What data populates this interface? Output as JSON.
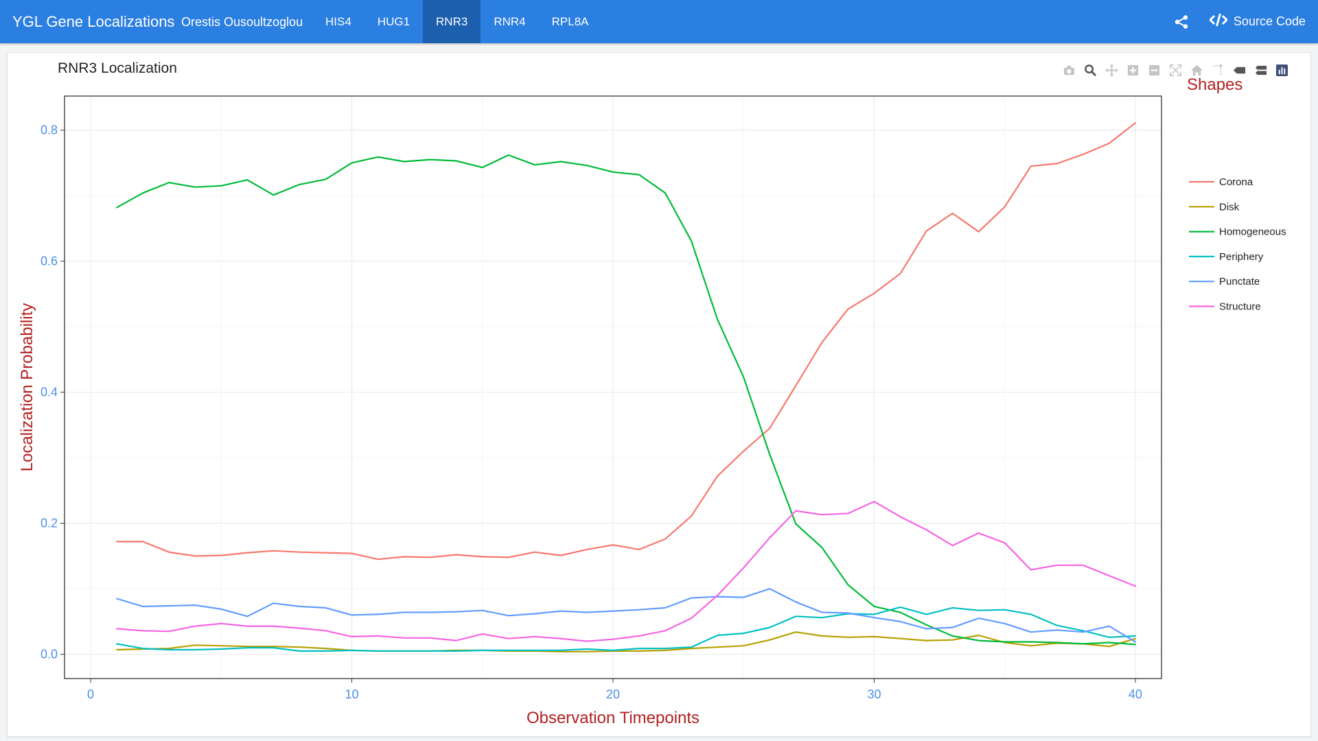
{
  "navbar": {
    "brand": "YGL Gene Localizations",
    "author": "Orestis Ousoultzoglou",
    "tabs": [
      {
        "label": "HIS4",
        "active": false
      },
      {
        "label": "HUG1",
        "active": false
      },
      {
        "label": "RNR3",
        "active": true
      },
      {
        "label": "RNR4",
        "active": false
      },
      {
        "label": "RPL8A",
        "active": false
      }
    ],
    "share_icon": "share-icon",
    "source_icon": "code-icon",
    "source_label": "Source Code"
  },
  "modebar": [
    "camera-icon",
    "zoom-icon",
    "pan-icon",
    "zoom-in-icon",
    "zoom-out-icon",
    "autoscale-icon",
    "home-icon",
    "spike-lines-icon",
    "hover-closest-icon",
    "hover-compare-icon",
    "plotly-logo-icon"
  ],
  "chart_data": {
    "type": "line",
    "title": "RNR3 Localization",
    "xlabel": "Observation Timepoints",
    "ylabel": "Localization Probability",
    "legend_title": "Shapes",
    "legend_position": "right",
    "xlim": [
      -1,
      41
    ],
    "ylim": [
      -0.037,
      0.852
    ],
    "xticks": [
      0,
      10,
      20,
      30,
      40
    ],
    "yticks": [
      0.0,
      0.2,
      0.4,
      0.6,
      0.8
    ],
    "ytick_labels": [
      "0.0",
      "0.2",
      "0.4",
      "0.6",
      "0.8"
    ],
    "grid": true,
    "colors": {
      "title": "#222222",
      "axis_labels": "#b22222",
      "tick_labels": "#4a8fe7",
      "grid": "#ebebeb",
      "frame": "#333333"
    },
    "x": [
      1,
      2,
      3,
      4,
      5,
      6,
      7,
      8,
      9,
      10,
      11,
      12,
      13,
      14,
      15,
      16,
      17,
      18,
      19,
      20,
      21,
      22,
      23,
      24,
      25,
      26,
      27,
      28,
      29,
      30,
      31,
      32,
      33,
      34,
      35,
      36,
      37,
      38,
      39,
      40
    ],
    "series": [
      {
        "name": "Corona",
        "color": "#F8766D",
        "values": [
          0.172,
          0.172,
          0.156,
          0.15,
          0.151,
          0.155,
          0.158,
          0.156,
          0.155,
          0.154,
          0.145,
          0.149,
          0.148,
          0.152,
          0.149,
          0.148,
          0.156,
          0.151,
          0.16,
          0.167,
          0.16,
          0.176,
          0.211,
          0.272,
          0.31,
          0.345,
          0.41,
          0.476,
          0.527,
          0.551,
          0.581,
          0.646,
          0.673,
          0.645,
          0.683,
          0.745,
          0.749,
          0.763,
          0.78,
          0.811
        ]
      },
      {
        "name": "Disk",
        "color": "#B79F00",
        "values": [
          0.007,
          0.008,
          0.009,
          0.014,
          0.013,
          0.012,
          0.012,
          0.011,
          0.009,
          0.006,
          0.005,
          0.005,
          0.005,
          0.006,
          0.006,
          0.005,
          0.005,
          0.004,
          0.004,
          0.005,
          0.005,
          0.006,
          0.009,
          0.011,
          0.013,
          0.022,
          0.034,
          0.028,
          0.026,
          0.027,
          0.024,
          0.021,
          0.022,
          0.029,
          0.018,
          0.013,
          0.017,
          0.016,
          0.012,
          0.024
        ]
      },
      {
        "name": "Homogeneous",
        "color": "#00BA38",
        "values": [
          0.682,
          0.704,
          0.72,
          0.713,
          0.715,
          0.724,
          0.701,
          0.717,
          0.725,
          0.75,
          0.759,
          0.752,
          0.755,
          0.753,
          0.743,
          0.762,
          0.747,
          0.752,
          0.746,
          0.736,
          0.732,
          0.704,
          0.631,
          0.511,
          0.423,
          0.305,
          0.199,
          0.163,
          0.106,
          0.073,
          0.064,
          0.045,
          0.028,
          0.021,
          0.019,
          0.019,
          0.018,
          0.016,
          0.018,
          0.015
        ]
      },
      {
        "name": "Periphery",
        "color": "#00BFC4",
        "values": [
          0.016,
          0.009,
          0.007,
          0.007,
          0.008,
          0.01,
          0.01,
          0.005,
          0.005,
          0.006,
          0.005,
          0.005,
          0.005,
          0.005,
          0.006,
          0.006,
          0.006,
          0.006,
          0.008,
          0.006,
          0.009,
          0.009,
          0.011,
          0.029,
          0.032,
          0.041,
          0.058,
          0.056,
          0.062,
          0.061,
          0.072,
          0.061,
          0.071,
          0.067,
          0.068,
          0.061,
          0.044,
          0.036,
          0.026,
          0.028
        ]
      },
      {
        "name": "Punctate",
        "color": "#619CFF",
        "values": [
          0.085,
          0.073,
          0.074,
          0.075,
          0.069,
          0.058,
          0.078,
          0.073,
          0.071,
          0.06,
          0.061,
          0.064,
          0.064,
          0.065,
          0.067,
          0.059,
          0.062,
          0.066,
          0.064,
          0.066,
          0.068,
          0.071,
          0.086,
          0.088,
          0.087,
          0.1,
          0.08,
          0.064,
          0.063,
          0.056,
          0.05,
          0.039,
          0.041,
          0.055,
          0.047,
          0.034,
          0.037,
          0.034,
          0.043,
          0.019
        ]
      },
      {
        "name": "Structure",
        "color": "#F564E3",
        "values": [
          0.039,
          0.036,
          0.035,
          0.043,
          0.047,
          0.043,
          0.043,
          0.04,
          0.036,
          0.027,
          0.028,
          0.025,
          0.025,
          0.021,
          0.031,
          0.024,
          0.027,
          0.024,
          0.02,
          0.023,
          0.028,
          0.036,
          0.055,
          0.09,
          0.132,
          0.178,
          0.219,
          0.213,
          0.215,
          0.233,
          0.21,
          0.19,
          0.166,
          0.185,
          0.17,
          0.129,
          0.136,
          0.136,
          0.12,
          0.104
        ]
      }
    ]
  }
}
